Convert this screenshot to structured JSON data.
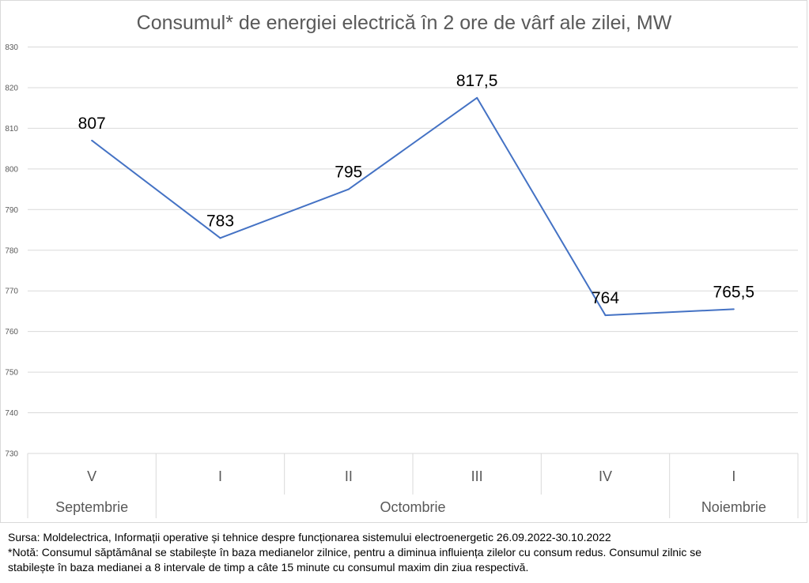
{
  "chart_data": {
    "type": "line",
    "title": "Consumul* de energiei electrică în 2 ore de vârf ale zilei, MW",
    "xlabel": "",
    "ylabel": "",
    "ylim": [
      730,
      830
    ],
    "y_ticks": [
      "730",
      "740",
      "750",
      "760",
      "770",
      "780",
      "790",
      "800",
      "810",
      "820",
      "830"
    ],
    "grid": true,
    "categories": [
      "V",
      "I",
      "II",
      "III",
      "IV",
      "I"
    ],
    "category_groups": [
      {
        "label": "Septembrie",
        "span": 1
      },
      {
        "label": "Octombrie",
        "span": 4
      },
      {
        "label": "Noiembrie",
        "span": 1
      }
    ],
    "series": [
      {
        "values": [
          807,
          783,
          795,
          817.5,
          764,
          765.5
        ]
      }
    ],
    "data_labels": [
      "807",
      "783",
      "795",
      "817,5",
      "764",
      "765,5"
    ],
    "line_color": "#4472c4"
  },
  "notes": {
    "source": "Sursa: Moldelectrica, Informații operative și tehnice despre funcționarea sistemului electroenergetic 26.09.2022-30.10.2022",
    "note_line1": "*Notă: Consumul săptămânal se stabilește în baza medianelor zilnice, pentru a diminua influiența zilelor cu consum redus. Consumul zilnic se",
    "note_line2": "stabilește în baza medianei a 8 intervale de timp a câte 15 minute cu consumul maxim din ziua respectivă."
  }
}
